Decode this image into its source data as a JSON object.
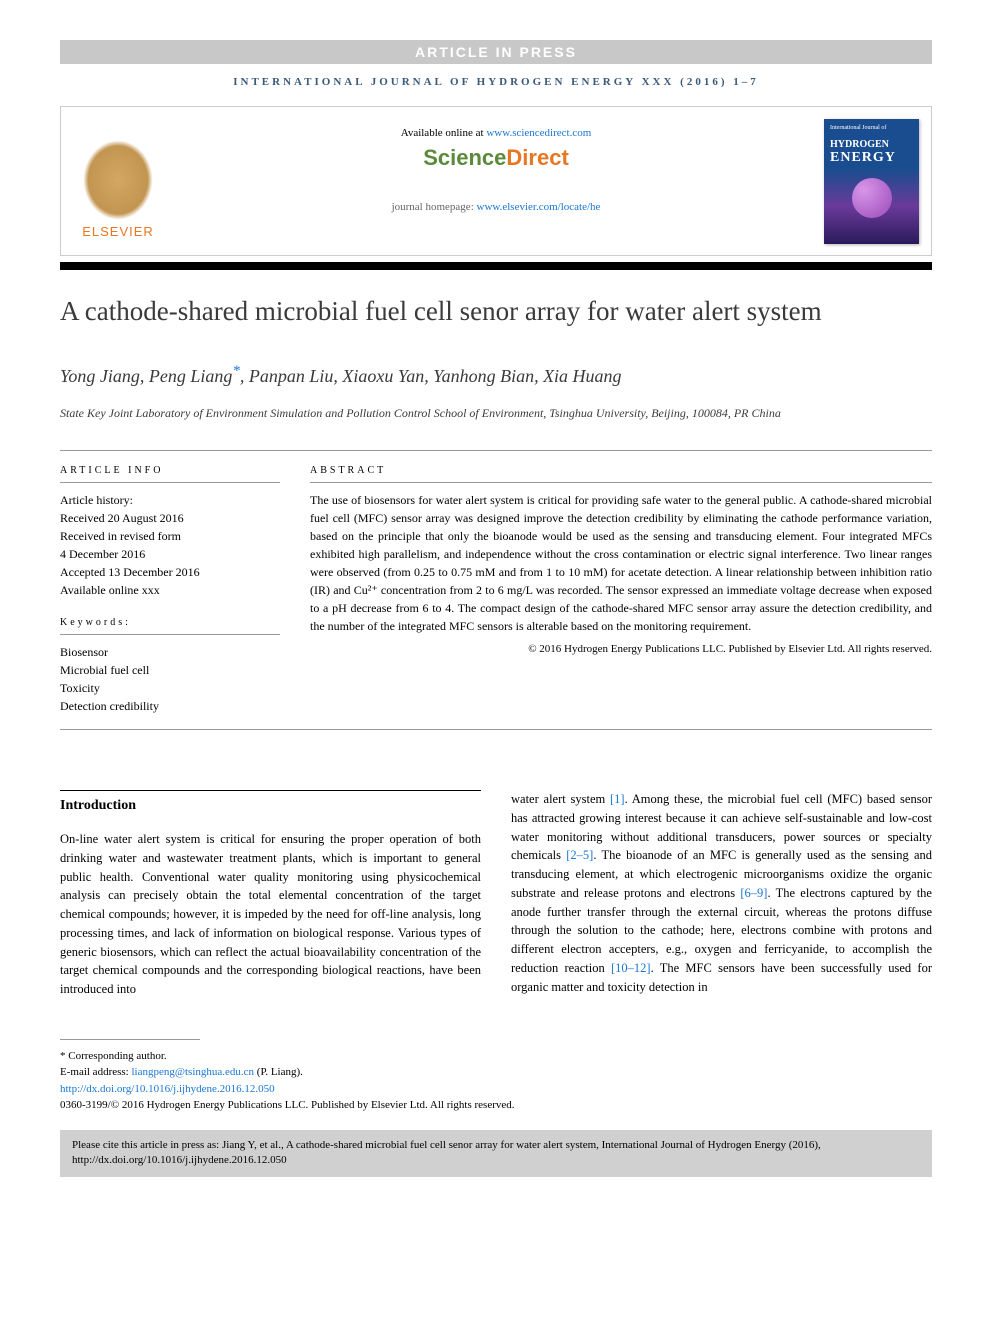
{
  "article_in_press": "ARTICLE IN PRESS",
  "journal_header": "INTERNATIONAL JOURNAL OF HYDROGEN ENERGY XXX (2016) 1–7",
  "elsevier": "ELSEVIER",
  "available_text": "Available online at ",
  "available_link": "www.sciencedirect.com",
  "sd_science": "Science",
  "sd_direct": "Direct",
  "homepage_text": "journal homepage: ",
  "homepage_link": "www.elsevier.com/locate/he",
  "cover_journal": "International Journal of",
  "cover_hydrogen": "HYDROGEN",
  "cover_energy": "ENERGY",
  "title": "A cathode-shared microbial fuel cell senor array for water alert system",
  "authors_pre": "Yong Jiang, Peng Liang",
  "authors_star": "*",
  "authors_post": ", Panpan Liu, Xiaoxu Yan, Yanhong Bian, Xia Huang",
  "affiliation": "State Key Joint Laboratory of Environment Simulation and Pollution Control School of Environment, Tsinghua University, Beijing, 100084, PR China",
  "info": {
    "header": "ARTICLE INFO",
    "history_label": "Article history:",
    "received": "Received 20 August 2016",
    "revised1": "Received in revised form",
    "revised2": "4 December 2016",
    "accepted": "Accepted 13 December 2016",
    "online": "Available online xxx",
    "keywords_label": "Keywords:",
    "keywords": [
      "Biosensor",
      "Microbial fuel cell",
      "Toxicity",
      "Detection credibility"
    ]
  },
  "abstract": {
    "header": "ABSTRACT",
    "text": "The use of biosensors for water alert system is critical for providing safe water to the general public. A cathode-shared microbial fuel cell (MFC) sensor array was designed improve the detection credibility by eliminating the cathode performance variation, based on the principle that only the bioanode would be used as the sensing and transducing element. Four integrated MFCs exhibited high parallelism, and independence without the cross contamination or electric signal interference. Two linear ranges were observed (from 0.25 to 0.75 mM and from 1 to 10 mM) for acetate detection. A linear relationship between inhibition ratio (IR) and Cu²⁺ concentration from 2 to 6 mg/L was recorded. The sensor expressed an immediate voltage decrease when exposed to a pH decrease from 6 to 4. The compact design of the cathode-shared MFC sensor array assure the detection credibility, and the number of the integrated MFC sensors is alterable based on the monitoring requirement.",
    "copyright": "© 2016 Hydrogen Energy Publications LLC. Published by Elsevier Ltd. All rights reserved."
  },
  "intro": {
    "heading": "Introduction",
    "col1": "On-line water alert system is critical for ensuring the proper operation of both drinking water and wastewater treatment plants, which is important to general public health. Conventional water quality monitoring using physicochemical analysis can precisely obtain the total elemental concentration of the target chemical compounds; however, it is impeded by the need for off-line analysis, long processing times, and lack of information on biological response. Various types of generic biosensors, which can reflect the actual bioavailability concentration of the target chemical compounds and the corresponding biological reactions, have been introduced into",
    "col2_a": "water alert system ",
    "ref1": "[1]",
    "col2_b": ". Among these, the microbial fuel cell (MFC) based sensor has attracted growing interest because it can achieve self-sustainable and low-cost water monitoring without additional transducers, power sources or specialty chemicals ",
    "ref2": "[2–5]",
    "col2_c": ". The bioanode of an MFC is generally used as the sensing and transducing element, at which electrogenic microorganisms oxidize the organic substrate and release protons and electrons ",
    "ref3": "[6–9]",
    "col2_d": ". The electrons captured by the anode further transfer through the external circuit, whereas the protons diffuse through the solution to the cathode; here, electrons combine with protons and different electron accepters, e.g., oxygen and ferricyanide, to accomplish the reduction reaction ",
    "ref4": "[10–12]",
    "col2_e": ". The MFC sensors have been successfully used for organic matter and toxicity detection in"
  },
  "footer": {
    "corresponding": "* Corresponding author.",
    "email_label": "E-mail address: ",
    "email": "liangpeng@tsinghua.edu.cn",
    "email_suffix": " (P. Liang).",
    "doi": "http://dx.doi.org/10.1016/j.ijhydene.2016.12.050",
    "issn": "0360-3199/© 2016 Hydrogen Energy Publications LLC. Published by Elsevier Ltd. All rights reserved."
  },
  "cite": "Please cite this article in press as: Jiang Y, et al., A cathode-shared microbial fuel cell senor array for water alert system, International Journal of Hydrogen Energy (2016), http://dx.doi.org/10.1016/j.ijhydene.2016.12.050"
}
